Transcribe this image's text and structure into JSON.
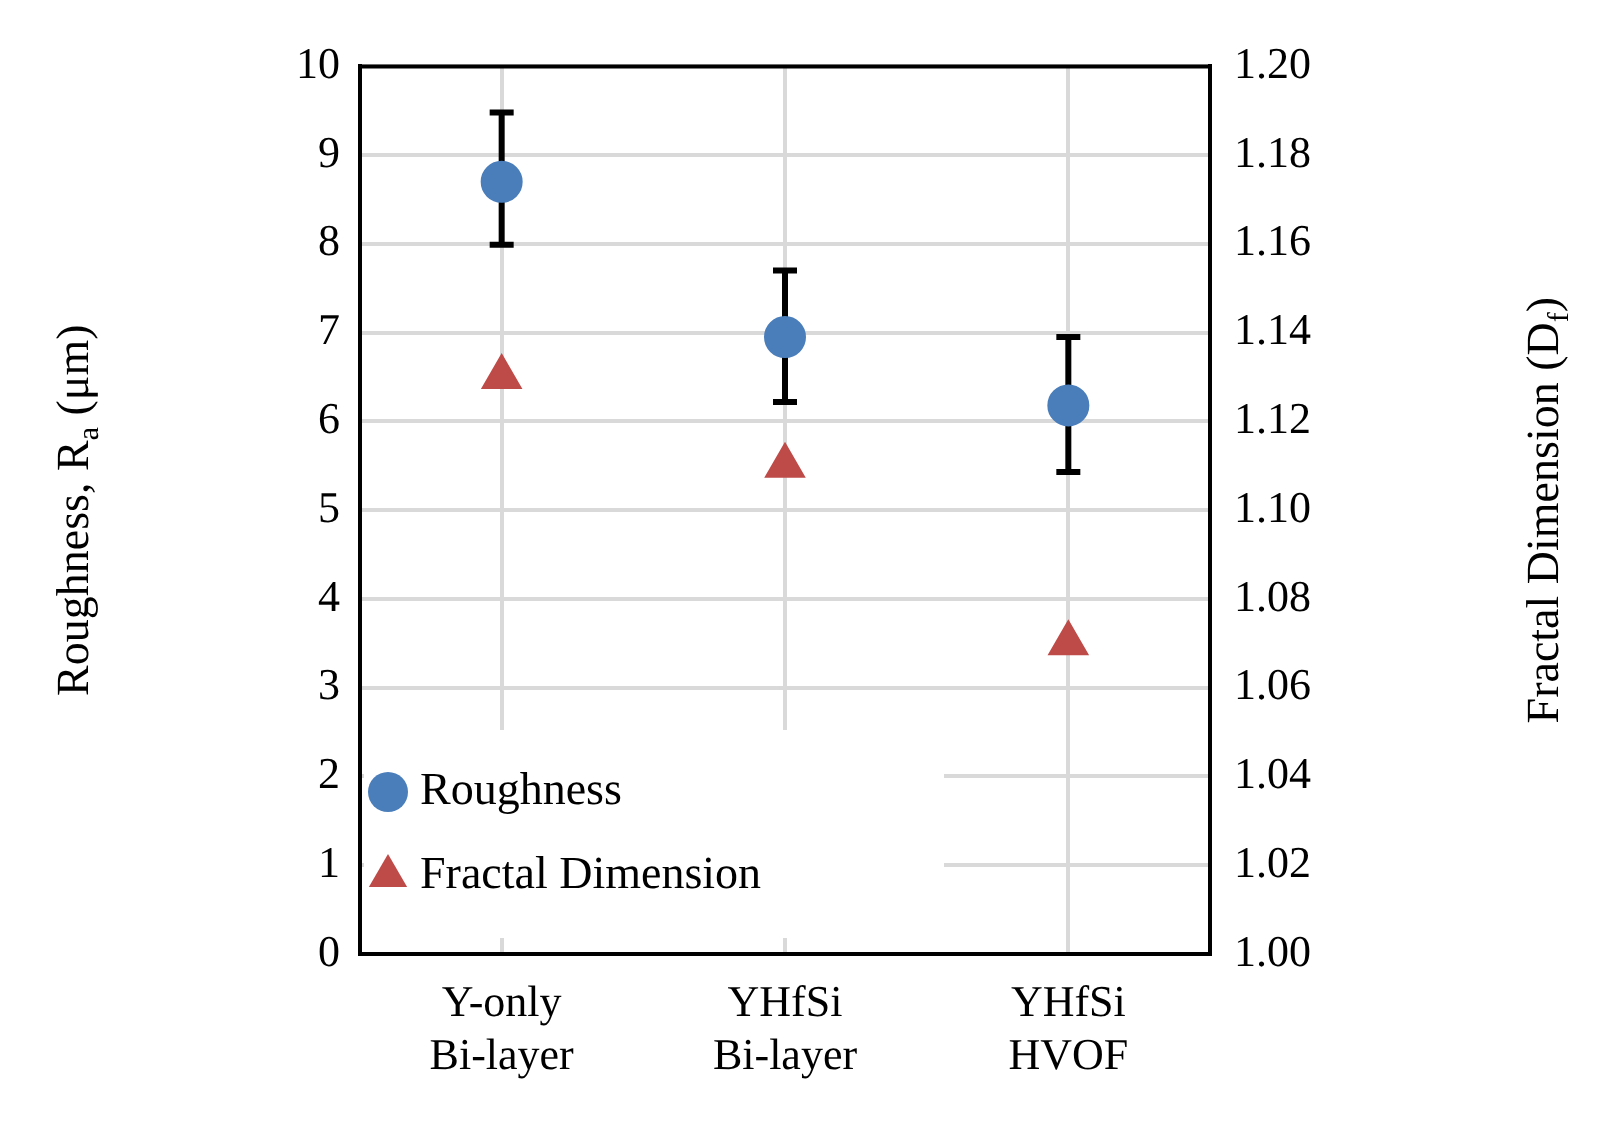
{
  "chart_data": {
    "type": "scatter",
    "ylabel": "Roughness, R$_{a}$ (μm)",
    "y2label": "Fractal Dimension (D$_{f}$)",
    "categories": [
      "Y-only\nBi-layer",
      "YHfSi\nBi-layer",
      "YHfSi\nHVOF"
    ],
    "series": [
      {
        "name": "Roughness",
        "color": "#4a7ebb",
        "marker": "circle",
        "values": [
          8.7,
          6.95,
          6.18
        ],
        "errors": [
          [
            7.99,
            9.48
          ],
          [
            6.22,
            7.7
          ],
          [
            5.43,
            6.95
          ]
        ]
      },
      {
        "name": "Fractal Dimension",
        "color": "#be4b48",
        "marker": "triangle",
        "axis": "y2",
        "values": [
          1.13,
          1.11,
          1.07
        ]
      }
    ],
    "ylim": [
      0,
      10
    ],
    "yticks": [
      0,
      1,
      2,
      3,
      4,
      5,
      6,
      7,
      8,
      9,
      10
    ],
    "y2lim": [
      1,
      1.2
    ],
    "y2ticks": [
      {
        "value": 1,
        "label": "1.00"
      },
      {
        "value": 1.02,
        "label": "1.02"
      },
      {
        "value": 1.04,
        "label": "1.04"
      },
      {
        "value": 1.06,
        "label": "1.06"
      },
      {
        "value": 1.08,
        "label": "1.08"
      },
      {
        "value": 1.1,
        "label": "1.10"
      },
      {
        "value": 1.12,
        "label": "1.12"
      },
      {
        "value": 1.14,
        "label": "1.14"
      },
      {
        "value": 1.16,
        "label": "1.16"
      },
      {
        "value": 1.18,
        "label": "1.18"
      },
      {
        "value": 1.2,
        "label": "1.20"
      }
    ],
    "grid": true,
    "legend": "bottom left"
  }
}
